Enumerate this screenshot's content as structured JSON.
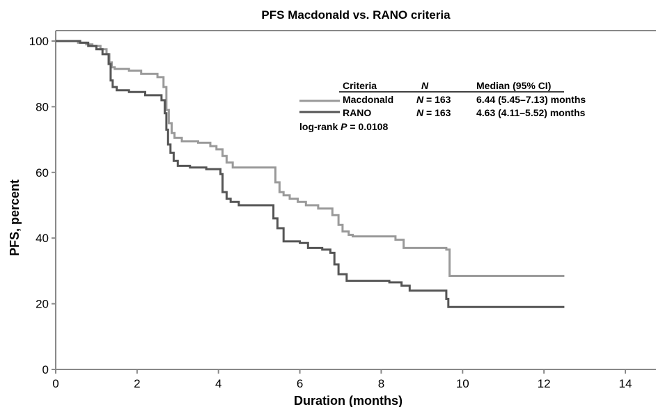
{
  "chart_data": {
    "type": "line",
    "title": "PFS Macdonald vs. RANO criteria",
    "xlabel": "Duration (months)",
    "ylabel": "PFS, percent",
    "xlim": [
      0,
      14
    ],
    "ylim": [
      0,
      100
    ],
    "xticks": [
      0,
      2,
      4,
      6,
      8,
      10,
      12,
      14
    ],
    "yticks": [
      0,
      20,
      40,
      60,
      80,
      100
    ],
    "legend_placement": "top-right",
    "legend_table": {
      "headers": {
        "criteria": "Criteria",
        "n": "N",
        "median": "Median (95% CI)"
      },
      "rows": [
        {
          "criteria": "Macdonald",
          "n_label": "N",
          "n_value": " = 163",
          "median": "6.44 (5.45–7.13) months"
        },
        {
          "criteria": "RANO",
          "n_label": "N",
          "n_value": " = 163",
          "median": "4.63 (4.11–5.52) months"
        }
      ],
      "pvalue_prefix": "log-rank ",
      "pvalue_label": "P",
      "pvalue_value": " = 0.0108"
    },
    "series": [
      {
        "name": "Macdonald",
        "color": "#9a9a9a",
        "x": [
          0,
          0.55,
          0.75,
          0.9,
          1.1,
          1.25,
          1.32,
          1.38,
          1.45,
          1.8,
          2.1,
          2.5,
          2.65,
          2.72,
          2.78,
          2.85,
          2.92,
          3.1,
          3.5,
          3.8,
          3.95,
          4.1,
          4.2,
          4.35,
          5.1,
          5.4,
          5.5,
          5.6,
          5.75,
          5.95,
          6.15,
          6.45,
          6.8,
          6.95,
          7.05,
          7.2,
          7.3,
          8.0,
          8.35,
          8.55,
          9.1,
          9.6,
          9.68,
          10.4,
          12.5
        ],
        "y": [
          100,
          99.5,
          99,
          98.5,
          97.5,
          96,
          93.5,
          92,
          91.5,
          91,
          90,
          89,
          86,
          79,
          75,
          72,
          70.5,
          69.5,
          69,
          68,
          67,
          65,
          63,
          61.5,
          61.5,
          57,
          54,
          53,
          52,
          51,
          50,
          49,
          47,
          44,
          42,
          41,
          40.5,
          40.5,
          39.5,
          37,
          37,
          36.5,
          28.5,
          28.5,
          28.5
        ]
      },
      {
        "name": "RANO",
        "color": "#555555",
        "x": [
          0,
          0.6,
          0.8,
          1.0,
          1.15,
          1.3,
          1.35,
          1.4,
          1.5,
          1.8,
          2.2,
          2.6,
          2.68,
          2.72,
          2.76,
          2.82,
          2.9,
          3.0,
          3.3,
          3.7,
          4.05,
          4.1,
          4.2,
          4.3,
          4.5,
          5.2,
          5.35,
          5.45,
          5.6,
          6.0,
          6.2,
          6.55,
          6.75,
          6.85,
          6.95,
          7.15,
          8.2,
          8.5,
          8.7,
          9.6,
          9.65,
          10.2,
          12.5
        ],
        "y": [
          100,
          99.5,
          98.5,
          97.5,
          96,
          93,
          88,
          86,
          85,
          84.5,
          83.5,
          82,
          78,
          73,
          68.5,
          66,
          63.5,
          62,
          61.5,
          61,
          59.5,
          54,
          52,
          51,
          50,
          50,
          46,
          43,
          39,
          38.5,
          37,
          36.5,
          35.5,
          32,
          29,
          27,
          26.5,
          25.5,
          24,
          21.5,
          19,
          19,
          19
        ]
      }
    ]
  }
}
